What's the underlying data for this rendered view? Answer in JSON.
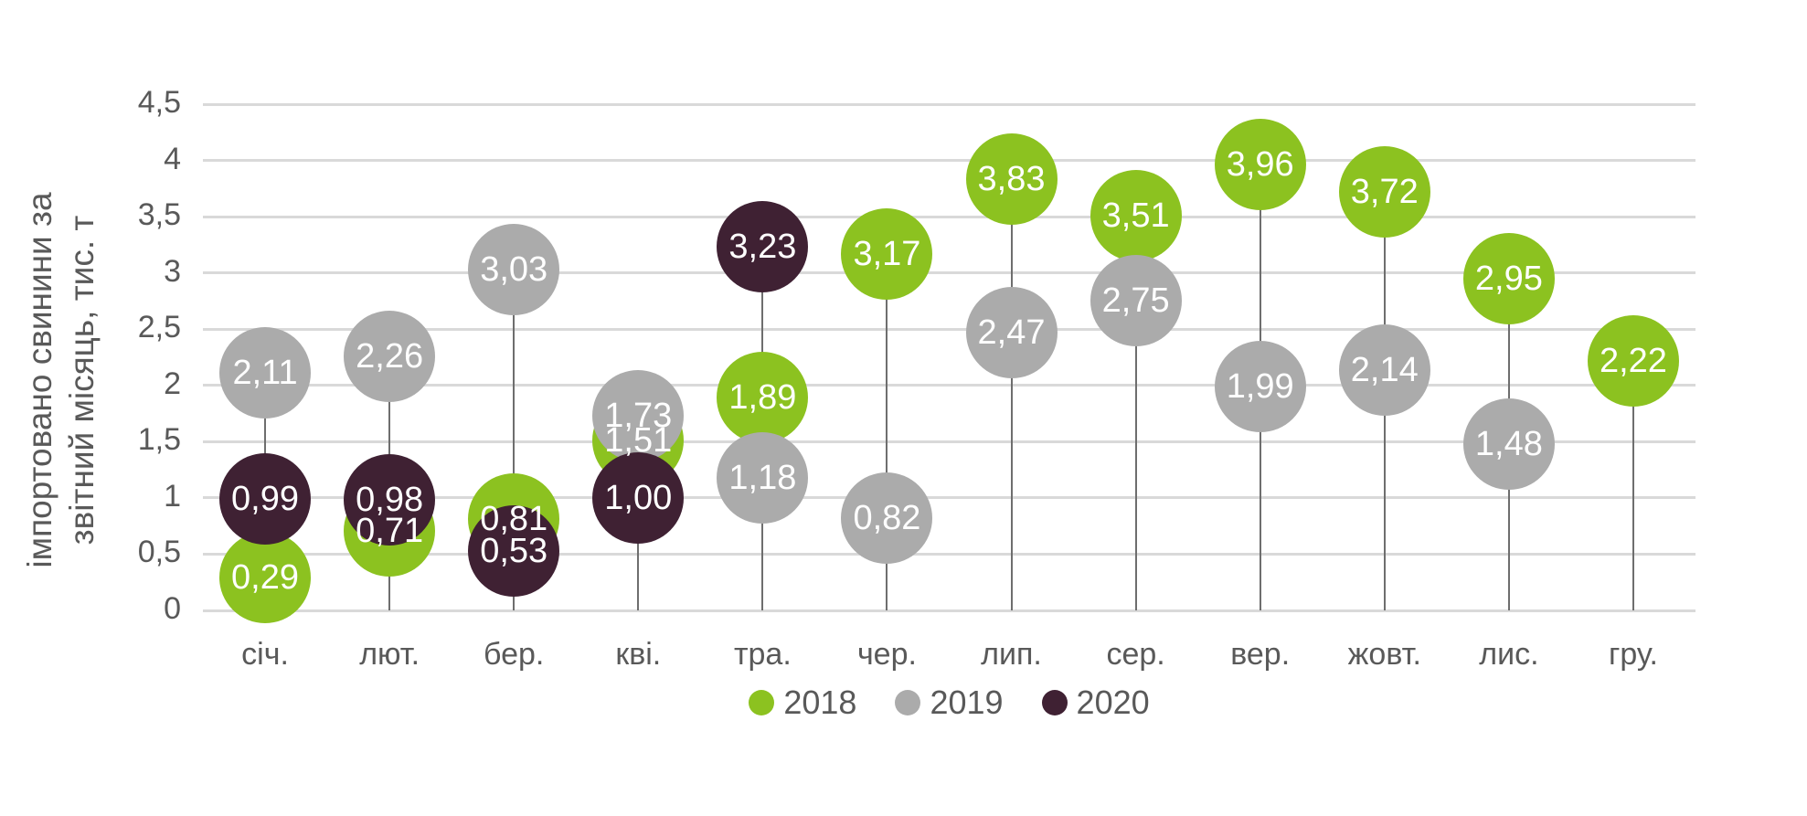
{
  "chart_data": {
    "type": "scatter",
    "variant": "lollipop",
    "title": "",
    "ylabel": "імпортовано свинини за звітний місяць, тис. т",
    "ylabel_lines": [
      "імпортовано свинини за",
      "звітний місяць, тис. т"
    ],
    "categories": [
      "січ.",
      "лют.",
      "бер.",
      "кві.",
      "тра.",
      "чер.",
      "лип.",
      "сер.",
      "вер.",
      "жовт.",
      "лис.",
      "гру."
    ],
    "y_ticks": [
      "0",
      "0,5",
      "1",
      "1,5",
      "2",
      "2,5",
      "3",
      "3,5",
      "4",
      "4,5"
    ],
    "ylim": [
      0,
      4.5
    ],
    "y_step": 0.5,
    "grid": true,
    "legend_position": "bottom",
    "colors": {
      "green_2018": "#8cc220",
      "gray_2019": "#ababab",
      "plum_2020": "#3f2133",
      "gridline": "#d9d9d9",
      "stem": "#6e6e6e",
      "axis_text": "#595959",
      "value_text": "#ffffff"
    },
    "series": [
      {
        "name": "2018",
        "color": "#8cc220",
        "values": [
          0.29,
          0.71,
          0.81,
          1.51,
          1.89,
          3.17,
          3.83,
          3.51,
          3.96,
          3.72,
          2.95,
          2.22
        ],
        "labels": [
          "0,29",
          "0,71",
          "0,81",
          "1,51",
          "1,89",
          "3,17",
          "3,83",
          "3,51",
          "3,96",
          "3,72",
          "2,95",
          "2,22"
        ]
      },
      {
        "name": "2019",
        "color": "#ababab",
        "values": [
          2.11,
          2.26,
          3.03,
          1.73,
          1.18,
          0.82,
          2.47,
          2.75,
          1.99,
          2.14,
          1.48,
          null
        ],
        "labels": [
          "2,11",
          "2,26",
          "3,03",
          "1,73",
          "1,18",
          "0,82",
          "2,47",
          "2,75",
          "1,99",
          "2,14",
          "1,48",
          null
        ]
      },
      {
        "name": "2020",
        "color": "#3f2133",
        "values": [
          0.99,
          0.98,
          0.53,
          1.0,
          3.23,
          null,
          null,
          null,
          null,
          null,
          null,
          null
        ],
        "labels": [
          "0,99",
          "0,98",
          "0,53",
          "1,00",
          "3,23",
          null,
          null,
          null,
          null,
          null,
          null,
          null
        ]
      }
    ]
  }
}
